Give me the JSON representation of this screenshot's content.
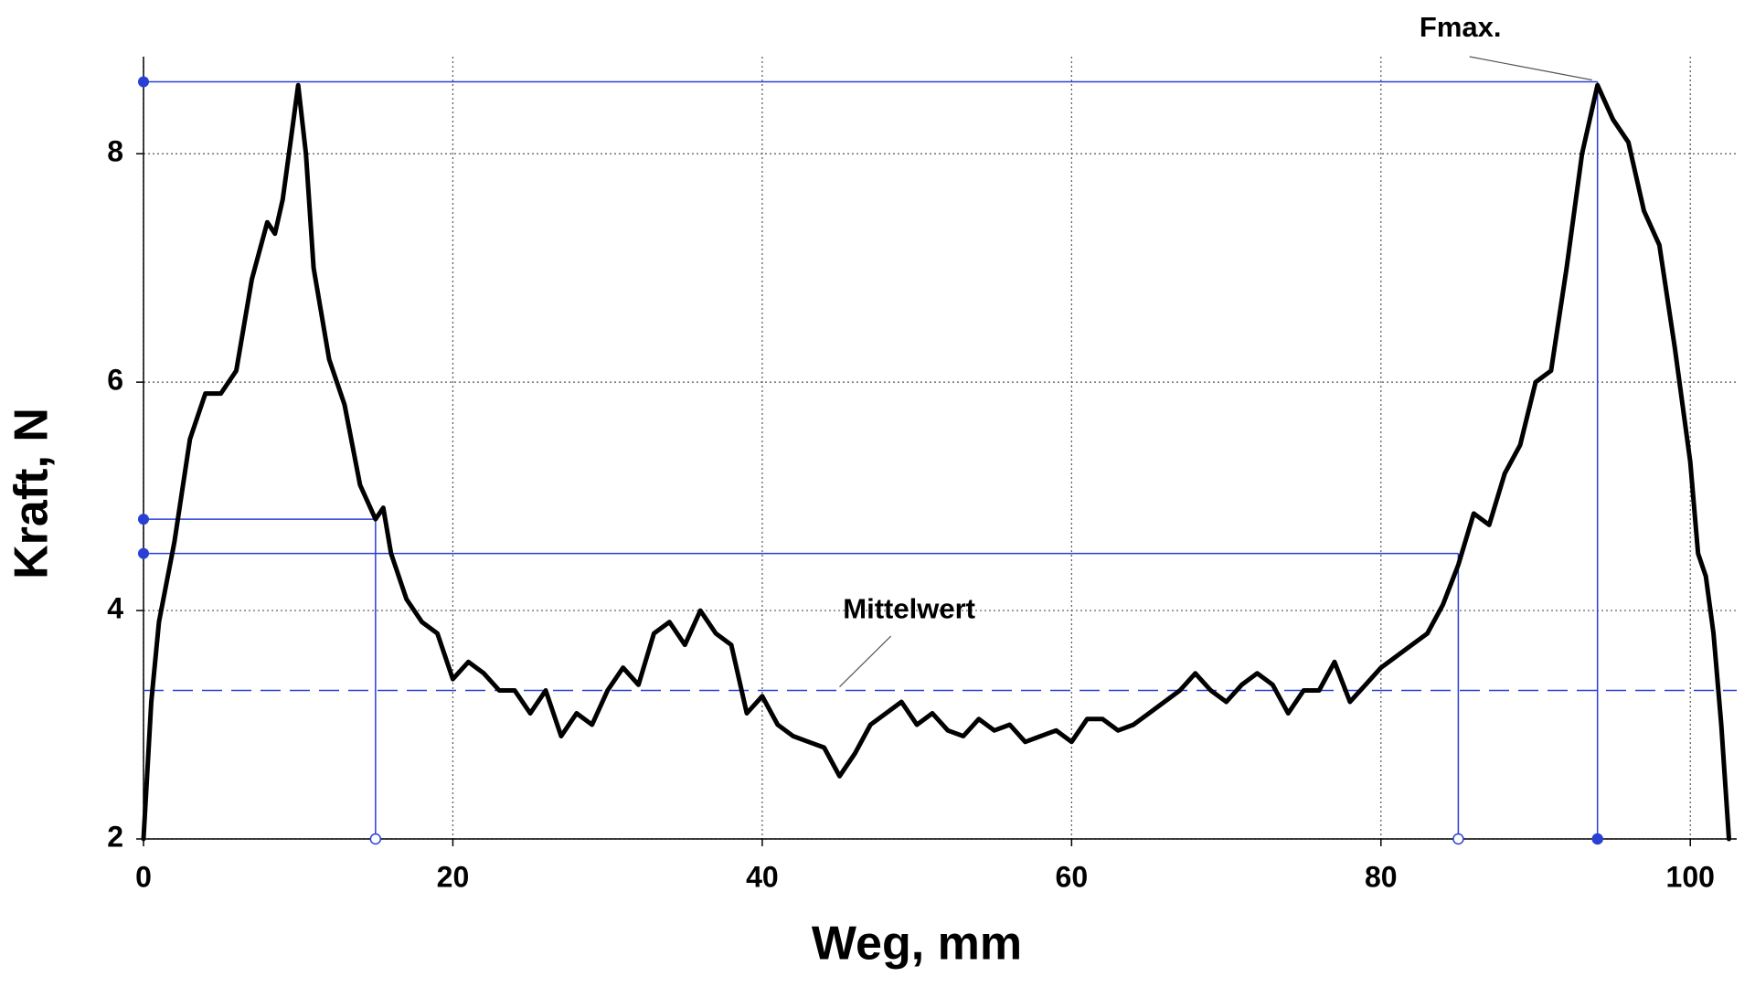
{
  "chart_data": {
    "type": "line",
    "x_label": "Weg, mm",
    "y_label": "Kraft, N",
    "xlim": [
      0,
      103
    ],
    "ylim": [
      2,
      8.85
    ],
    "xticks": [
      0,
      20,
      40,
      60,
      80,
      100
    ],
    "yticks": [
      2,
      4,
      6,
      8
    ],
    "grid": true,
    "series": [
      {
        "color": "#000000",
        "x": [
          0,
          0.5,
          1,
          2,
          3,
          4,
          5,
          6,
          7,
          8,
          8.5,
          9,
          9.5,
          10,
          10.5,
          11,
          12,
          13,
          14,
          15,
          15.5,
          16,
          17,
          18,
          19,
          20,
          21,
          22,
          23,
          24,
          25,
          26,
          27,
          28,
          29,
          30,
          31,
          32,
          33,
          34,
          35,
          36,
          37,
          38,
          39,
          40,
          41,
          42,
          43,
          44,
          45,
          46,
          47,
          48,
          49,
          50,
          51,
          52,
          53,
          54,
          55,
          56,
          57,
          58,
          59,
          60,
          61,
          62,
          63,
          64,
          65,
          66,
          67,
          68,
          69,
          70,
          71,
          72,
          73,
          74,
          75,
          76,
          77,
          78,
          79,
          80,
          81,
          82,
          83,
          84,
          85,
          86,
          87,
          88,
          89,
          90,
          91,
          92,
          93,
          94,
          95,
          96,
          97,
          98,
          99,
          100,
          100.5,
          101,
          101.5,
          102,
          102.5
        ],
        "values": [
          2.0,
          3.2,
          3.9,
          4.6,
          5.5,
          5.9,
          5.9,
          6.1,
          6.9,
          7.4,
          7.3,
          7.6,
          8.1,
          8.6,
          8.0,
          7.0,
          6.2,
          5.8,
          5.1,
          4.8,
          4.9,
          4.5,
          4.1,
          3.9,
          3.8,
          3.4,
          3.55,
          3.45,
          3.3,
          3.3,
          3.1,
          3.3,
          2.9,
          3.1,
          3.0,
          3.3,
          3.5,
          3.35,
          3.8,
          3.9,
          3.7,
          4.0,
          3.8,
          3.7,
          3.1,
          3.25,
          3.0,
          2.9,
          2.85,
          2.8,
          2.55,
          2.75,
          3.0,
          3.1,
          3.2,
          3.0,
          3.1,
          2.95,
          2.9,
          3.05,
          2.95,
          3.0,
          2.85,
          2.9,
          2.95,
          2.85,
          3.05,
          3.05,
          2.95,
          3.0,
          3.1,
          3.2,
          3.3,
          3.45,
          3.3,
          3.2,
          3.35,
          3.45,
          3.35,
          3.1,
          3.3,
          3.3,
          3.55,
          3.2,
          3.35,
          3.5,
          3.6,
          3.7,
          3.8,
          4.05,
          4.4,
          4.85,
          4.75,
          5.2,
          5.45,
          6.0,
          6.1,
          7.0,
          8.0,
          8.6,
          8.3,
          8.1,
          7.5,
          7.2,
          6.3,
          5.3,
          4.5,
          4.3,
          3.8,
          3.0,
          2.0
        ]
      }
    ],
    "reference_color": "#2a3fd4",
    "mean": {
      "label": "Mittelwert",
      "value": 3.3
    },
    "markers": [
      {
        "label": "Fmax.",
        "x": 94,
        "y": 8.63
      },
      {
        "x": 15,
        "y": 4.8
      },
      {
        "x": 85,
        "y": 4.5
      }
    ]
  }
}
